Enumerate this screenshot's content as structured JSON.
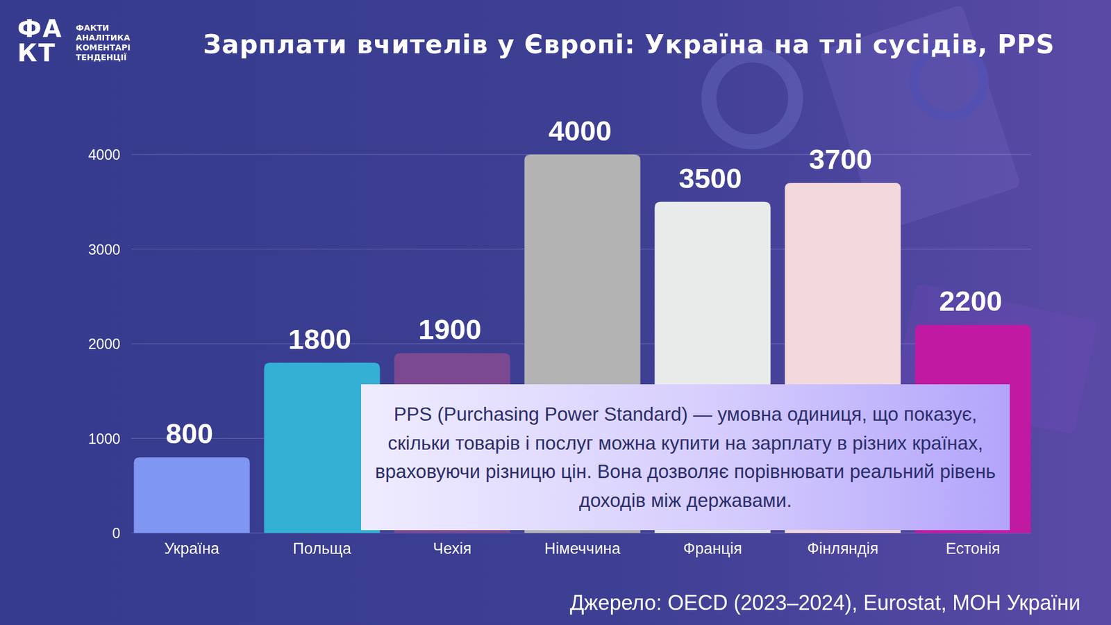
{
  "logo": {
    "mark": [
      "ФА",
      "КТ"
    ],
    "lines": [
      "ФАКТИ",
      "АНАЛІТИКА",
      "КОМЕНТАРІ",
      "ТЕНДЕНЦІЇ"
    ]
  },
  "chart_data": {
    "type": "bar",
    "title": "Зарплати вчителів у Європі: Україна на тлі сусідів, PPS",
    "categories": [
      "Україна",
      "Польща",
      "Чехія",
      "Німеччина",
      "Франція",
      "Фінляндія",
      "Естонія"
    ],
    "values": [
      800,
      1800,
      1900,
      4000,
      3500,
      3700,
      2200
    ],
    "colors": [
      "#7f96f2",
      "#33b0d3",
      "#7b4990",
      "#b3b3b3",
      "#e9ebeb",
      "#f3d9dc",
      "#c01aa2"
    ],
    "ylim": [
      0,
      4000
    ],
    "yticks": [
      0,
      1000,
      2000,
      3000,
      4000
    ],
    "grid": true,
    "data_labels": true,
    "annotations": [
      "PPS (Purchasing Power Standard) — умовна одиниця, що показує, скільки товарів і послуг можна купити на зарплату в різних країнах, враховуючи різницю цін. Вона дозволяє порівнювати реальний рівень доходів між державами."
    ],
    "source": "Джерело: OECD (2023–2024), Eurostat, МОН України"
  }
}
